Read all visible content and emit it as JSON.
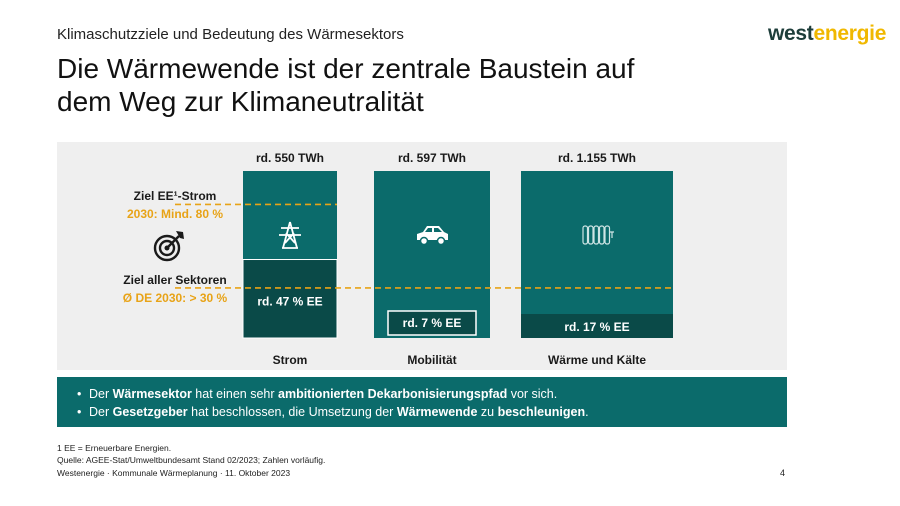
{
  "header": {
    "subtitle": "Klimaschutzziele und Bedeutung des Wärmesektors",
    "title_line1": "Die Wärmewende ist der zentrale Baustein auf",
    "title_line2": "dem Weg zur Klimaneutralität",
    "logo_part1": "west",
    "logo_part2": "energie"
  },
  "colors": {
    "teal": "#0b6b6b",
    "teal_dark": "#0a4a48",
    "orange": "#e8a317",
    "panel": "#efefef"
  },
  "chart_data": {
    "type": "bar",
    "categories": [
      "Strom",
      "Mobilität",
      "Wärme und Kälte"
    ],
    "totals_label": [
      "rd. 550 TWh",
      "rd. 597 TWh",
      "rd. 1.155 TWh"
    ],
    "totals_twh": [
      550,
      597,
      1155
    ],
    "ee_share_pct": [
      47,
      7,
      17
    ],
    "ee_labels": [
      "rd. 47 % EE",
      "rd. 7 % EE",
      "rd. 17 % EE"
    ],
    "icons": [
      "power-pylon-icon",
      "car-icon",
      "radiator-icon"
    ],
    "targets": [
      {
        "label": "Ziel EE¹-Strom",
        "value": "2030: Mind. 80 %",
        "pct": 80
      },
      {
        "label": "Ziel aller Sektoren",
        "value": "Ø DE 2030:  > 30 %",
        "pct": 30
      }
    ]
  },
  "info": {
    "b1_pre": "Der ",
    "b1_bold1": "Wärmesektor",
    "b1_mid": " hat einen sehr ",
    "b1_bold2": "ambitionierten Dekarbonisierungspfad",
    "b1_post": " vor sich.",
    "b2_pre": "Der ",
    "b2_bold1": "Gesetzgeber",
    "b2_mid": " hat beschlossen, die Umsetzung der ",
    "b2_bold2": "Wärmewende",
    "b2_mid2": " zu ",
    "b2_bold3": "beschleunigen",
    "b2_post": "."
  },
  "footer": {
    "note": "1 EE = Erneuerbare Energien.",
    "source": "Quelle: AGEE-Stat/Umweltbundesamt Stand 02/2023; Zahlen vorläufig.",
    "meta": "Westenergie · Kommunale Wärmeplanung · 11. Oktober 2023",
    "page": "4"
  }
}
